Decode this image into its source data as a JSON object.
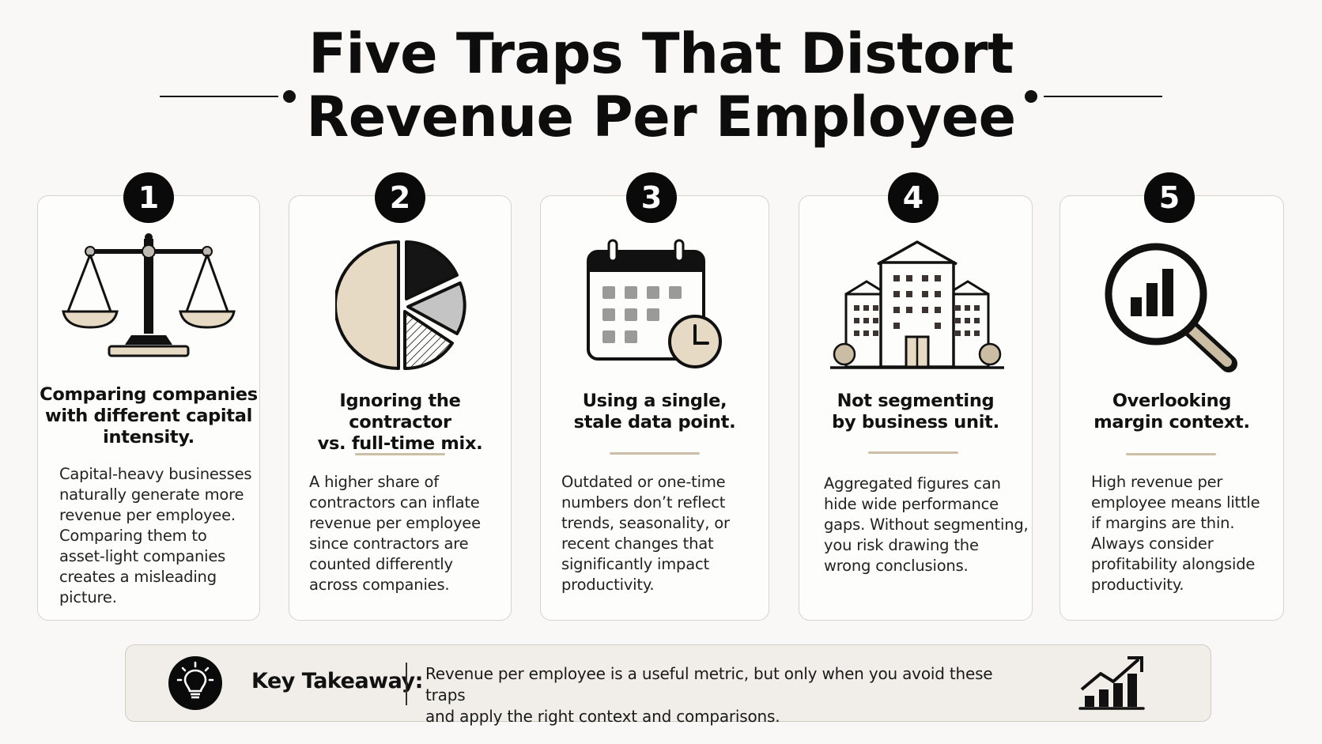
{
  "title": {
    "line1": "Five Traps That Distort",
    "line2": "Revenue Per Employee"
  },
  "cards": [
    {
      "number": "1",
      "icon": "balance-scale-icon",
      "title_lines": [
        "Comparing companies",
        "with different capital",
        "intensity."
      ],
      "desc_lines": [
        "Capital-heavy businesses",
        "naturally generate more",
        "revenue per employee.",
        "Comparing them to",
        "asset-light companies",
        "creates a misleading",
        "picture."
      ]
    },
    {
      "number": "2",
      "icon": "pie-chart-icon",
      "title_lines": [
        "Ignoring the contractor",
        "vs. full-time mix."
      ],
      "desc_lines": [
        "A higher share of",
        "contractors can inflate",
        "revenue per employee",
        "since contractors are",
        "counted differently",
        "across companies."
      ]
    },
    {
      "number": "3",
      "icon": "calendar-clock-icon",
      "title_lines": [
        "Using a single,",
        "stale data point."
      ],
      "desc_lines": [
        "Outdated or one-time",
        "numbers don’t reflect",
        "trends, seasonality, or",
        "recent changes that",
        "significantly impact",
        "productivity."
      ]
    },
    {
      "number": "4",
      "icon": "office-building-icon",
      "title_lines": [
        "Not segmenting",
        "by business unit."
      ],
      "desc_lines": [
        "Aggregated figures can",
        "hide wide performance",
        "gaps. Without segmenting,",
        "you risk drawing the",
        "wrong conclusions."
      ]
    },
    {
      "number": "5",
      "icon": "magnifier-chart-icon",
      "title_lines": [
        "Overlooking",
        "margin context."
      ],
      "desc_lines": [
        "High revenue per",
        "employee means little",
        "if margins are thin.",
        "Always consider",
        "profitability alongside",
        "productivity."
      ]
    }
  ],
  "takeaway": {
    "label": "Key Takeaway:",
    "line1": "Revenue per employee is a useful metric, but only when you avoid these traps",
    "line2": "and apply the right context and comparisons.",
    "icons": [
      "lightbulb-icon",
      "growth-chart-icon"
    ]
  },
  "colors": {
    "background": "#f9f8f6",
    "ink": "#111111",
    "beige_accent": "#e6dac4",
    "divider": "#cdbfa6",
    "gray_slice": "#c4c4c4"
  }
}
